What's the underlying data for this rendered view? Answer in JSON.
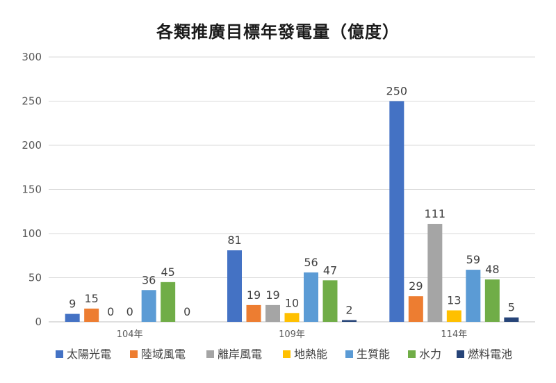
{
  "chart_data": {
    "type": "bar",
    "title": "各類推廣目標年發電量（億度）",
    "categories": [
      "104年",
      "109年",
      "114年"
    ],
    "ylim": [
      0,
      300
    ],
    "yticks": [
      0,
      50,
      100,
      150,
      200,
      250,
      300
    ],
    "grid": true,
    "legend_position": "bottom",
    "series": [
      {
        "name": "太陽光電",
        "color": "#4472C4",
        "values": [
          9,
          81,
          250
        ]
      },
      {
        "name": "陸域風電",
        "color": "#ED7D31",
        "values": [
          15,
          19,
          29
        ]
      },
      {
        "name": "離岸風電",
        "color": "#A5A5A5",
        "values": [
          0,
          19,
          111
        ]
      },
      {
        "name": "地熱能",
        "color": "#FFC000",
        "values": [
          0,
          10,
          13
        ]
      },
      {
        "name": "生質能",
        "color": "#5B9BD5",
        "values": [
          36,
          56,
          59
        ]
      },
      {
        "name": "水力",
        "color": "#70AD47",
        "values": [
          45,
          47,
          48
        ]
      },
      {
        "name": "燃料電池",
        "color": "#264478",
        "values": [
          0,
          2,
          5
        ]
      }
    ]
  }
}
